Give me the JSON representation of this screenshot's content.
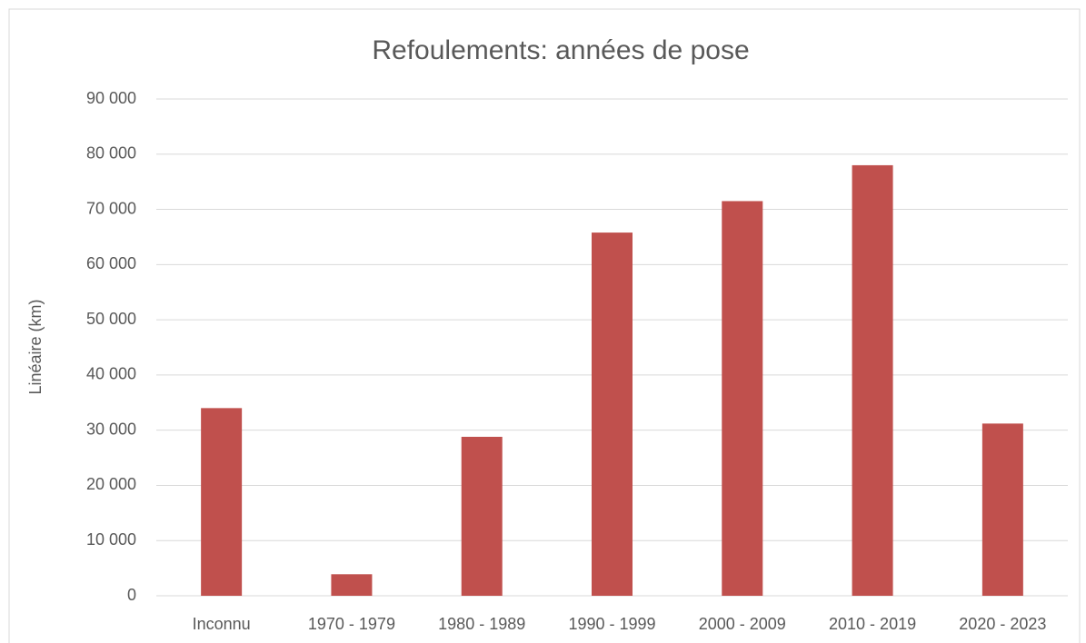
{
  "chart_data": {
    "type": "bar",
    "title": "Refoulements: années de pose",
    "y_label": "Linéaire (km)",
    "categories": [
      "Inconnu",
      "1970 - 1979",
      "1980 - 1989",
      "1990 - 1999",
      "2000 - 2009",
      "2010 - 2019",
      "2020 - 2023"
    ],
    "values": [
      34000,
      3900,
      28800,
      65800,
      71500,
      78000,
      31200
    ],
    "color": "#c0504d",
    "ylim": [
      0,
      90000
    ],
    "yticks": [
      0,
      {
        "value": 10000,
        "label": "10 000"
      },
      {
        "value": 20000,
        "label": "20 000"
      },
      {
        "value": 30000,
        "label": "30 000"
      },
      {
        "value": 40000,
        "label": "40 000"
      },
      {
        "value": 50000,
        "label": "50 000"
      },
      {
        "value": 60000,
        "label": "60 000"
      },
      {
        "value": 70000,
        "label": "70 000"
      },
      {
        "value": 80000,
        "label": "80 000"
      },
      {
        "value": 90000,
        "label": "90 000"
      }
    ],
    "grid": true
  }
}
